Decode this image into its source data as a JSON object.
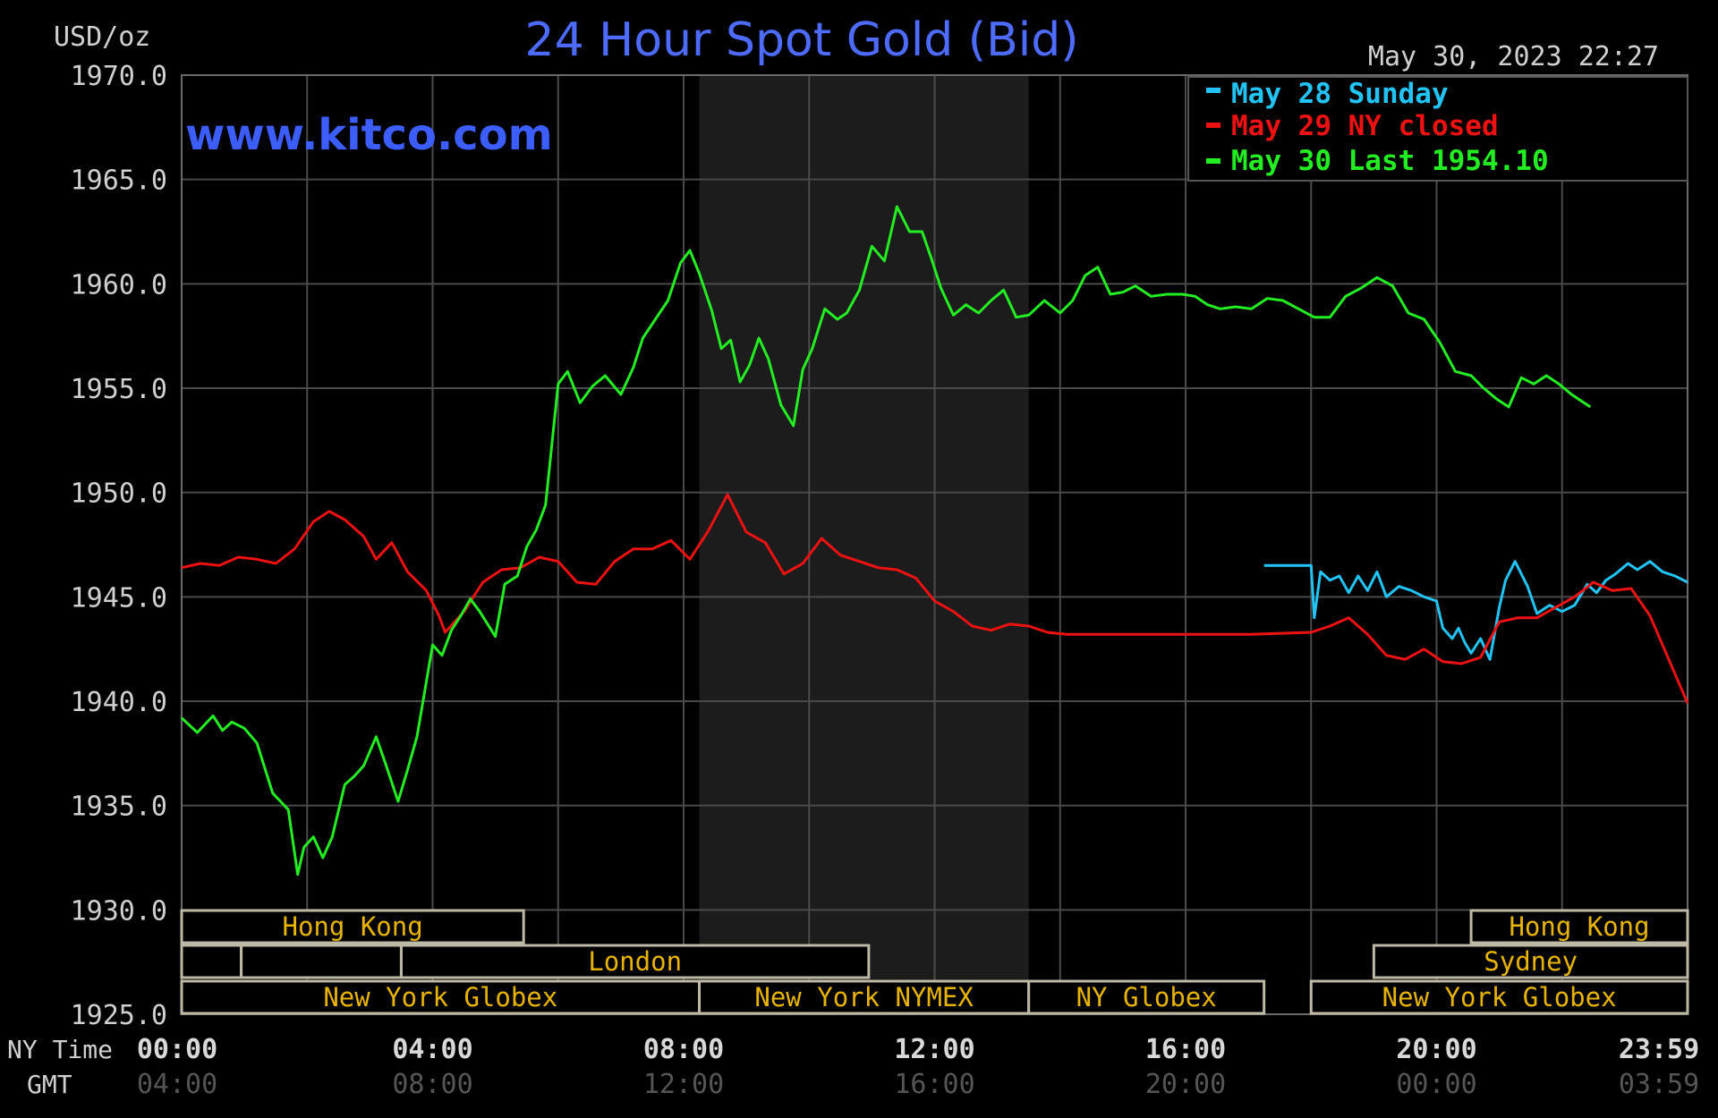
{
  "chart_data": {
    "type": "line",
    "title": "24 Hour Spot Gold (Bid)",
    "ylabel": "USD/oz",
    "timestamp": "May 30, 2023 22:27",
    "watermark": "www.kitco.com",
    "ylim": [
      1925,
      1970
    ],
    "y_ticks": [
      "1970.0",
      "1965.0",
      "1960.0",
      "1955.0",
      "1950.0",
      "1945.0",
      "1940.0",
      "1935.0",
      "1930.0",
      "1925.0"
    ],
    "x_axis": {
      "row_labels": [
        "NY Time",
        "GMT"
      ],
      "ny_ticks": [
        "00:00",
        "04:00",
        "08:00",
        "12:00",
        "16:00",
        "20:00",
        "23:59"
      ],
      "gmt_ticks": [
        "04:00",
        "08:00",
        "12:00",
        "16:00",
        "20:00",
        "00:00",
        "03:59"
      ]
    },
    "grid": true,
    "legend_position": "top-right",
    "legend": [
      {
        "label": "May 28 Sunday",
        "color": "#22c4f5"
      },
      {
        "label": "May 29 NY closed",
        "color": "#ee1111"
      },
      {
        "label": "May 30 Last 1954.10",
        "color": "#22ee22"
      }
    ],
    "sessions": {
      "row1": [
        {
          "label": "Hong Kong",
          "start": 0.0,
          "end": 5.45
        },
        {
          "label": "Hong Kong",
          "start": 20.55,
          "end": 24.0
        }
      ],
      "row2": [
        {
          "label": "",
          "start": 0.0,
          "end": 0.95
        },
        {
          "label": "",
          "start": 0.95,
          "end": 3.5
        },
        {
          "label": "London",
          "start": 3.5,
          "end": 10.95
        },
        {
          "label": "Sydney",
          "start": 19.0,
          "end": 24.0
        }
      ],
      "row3": [
        {
          "label": "New York Globex",
          "start": 0.0,
          "end": 8.25
        },
        {
          "label": "New York NYMEX",
          "start": 8.25,
          "end": 13.5
        },
        {
          "label": "NY Globex",
          "start": 13.5,
          "end": 17.25
        },
        {
          "label": "New York Globex",
          "start": 18.0,
          "end": 24.0
        }
      ]
    },
    "shaded_session": {
      "start": 8.25,
      "end": 13.5
    },
    "series": [
      {
        "name": "May 28 Sunday",
        "color": "#22c4f5",
        "x": [
          17.25,
          17.7,
          17.95,
          18.0,
          18.05,
          18.15,
          18.3,
          18.45,
          18.6,
          18.75,
          18.9,
          19.05,
          19.2,
          19.4,
          19.6,
          19.8,
          20.0,
          20.1,
          20.25,
          20.35,
          20.45,
          20.55,
          20.7,
          20.85,
          21.0,
          21.1,
          21.25,
          21.45,
          21.6,
          21.8,
          22.0,
          22.2,
          22.4,
          22.55,
          22.7,
          22.85,
          23.05,
          23.2,
          23.4,
          23.6,
          23.8,
          24.0
        ],
        "y": [
          1946.5,
          1946.5,
          1946.5,
          1946.5,
          1944.0,
          1946.2,
          1945.8,
          1946.0,
          1945.2,
          1946.0,
          1945.3,
          1946.2,
          1945.0,
          1945.5,
          1945.3,
          1945.0,
          1944.8,
          1943.5,
          1943.0,
          1943.5,
          1942.8,
          1942.3,
          1943.0,
          1942.0,
          1944.5,
          1945.8,
          1946.7,
          1945.5,
          1944.2,
          1944.6,
          1944.3,
          1944.6,
          1945.6,
          1945.2,
          1945.8,
          1946.1,
          1946.6,
          1946.3,
          1946.7,
          1946.2,
          1946.0,
          1945.7
        ]
      },
      {
        "name": "May 29 NY closed",
        "color": "#ee1111",
        "x": [
          0.0,
          0.3,
          0.6,
          0.9,
          1.2,
          1.5,
          1.8,
          2.1,
          2.35,
          2.6,
          2.9,
          3.1,
          3.35,
          3.6,
          3.9,
          4.1,
          4.2,
          4.5,
          4.8,
          5.1,
          5.4,
          5.7,
          6.0,
          6.3,
          6.6,
          6.9,
          7.2,
          7.5,
          7.8,
          8.1,
          8.4,
          8.7,
          9.0,
          9.3,
          9.6,
          9.9,
          10.2,
          10.5,
          10.8,
          11.1,
          11.4,
          11.7,
          12.0,
          12.3,
          12.6,
          12.9,
          13.2,
          13.5,
          13.8,
          14.1,
          14.4,
          14.7,
          15.0,
          16.0,
          17.0,
          18.0,
          18.3,
          18.6,
          18.9,
          19.2,
          19.5,
          19.8,
          20.1,
          20.4,
          20.7,
          21.0,
          21.3,
          21.6,
          21.9,
          22.2,
          22.5,
          22.8,
          23.1,
          23.4,
          23.7,
          24.0
        ],
        "y": [
          1946.4,
          1946.6,
          1946.5,
          1946.9,
          1946.8,
          1946.6,
          1947.3,
          1948.6,
          1949.1,
          1948.7,
          1947.9,
          1946.8,
          1947.6,
          1946.2,
          1945.3,
          1944.1,
          1943.3,
          1944.3,
          1945.7,
          1946.3,
          1946.4,
          1946.9,
          1946.7,
          1945.7,
          1945.6,
          1946.7,
          1947.3,
          1947.3,
          1947.7,
          1946.8,
          1948.2,
          1949.9,
          1948.1,
          1947.6,
          1946.1,
          1946.6,
          1947.8,
          1947.0,
          1946.7,
          1946.4,
          1946.3,
          1945.9,
          1944.8,
          1944.3,
          1943.6,
          1943.4,
          1943.7,
          1943.6,
          1943.3,
          1943.2,
          1943.2,
          1943.2,
          1943.2,
          1943.2,
          1943.2,
          1943.3,
          1943.6,
          1944.0,
          1943.2,
          1942.2,
          1942.0,
          1942.5,
          1941.9,
          1941.8,
          1942.1,
          1943.8,
          1944.0,
          1944.0,
          1944.5,
          1945.0,
          1945.7,
          1945.3,
          1945.4,
          1944.1,
          1942.0,
          1939.9
        ]
      },
      {
        "name": "May 30 Last 1954.10",
        "color": "#22ee22",
        "x": [
          0.0,
          0.25,
          0.5,
          0.65,
          0.8,
          1.0,
          1.2,
          1.45,
          1.7,
          1.85,
          1.95,
          2.1,
          2.25,
          2.4,
          2.6,
          2.75,
          2.9,
          3.1,
          3.25,
          3.45,
          3.6,
          3.75,
          4.0,
          4.15,
          4.3,
          4.45,
          4.6,
          4.75,
          5.0,
          5.15,
          5.35,
          5.5,
          5.65,
          5.8,
          6.0,
          6.15,
          6.35,
          6.55,
          6.75,
          7.0,
          7.2,
          7.35,
          7.55,
          7.75,
          7.95,
          8.1,
          8.25,
          8.45,
          8.6,
          8.75,
          8.9,
          9.05,
          9.2,
          9.35,
          9.55,
          9.75,
          9.9,
          10.05,
          10.25,
          10.45,
          10.6,
          10.8,
          11.0,
          11.2,
          11.4,
          11.6,
          11.8,
          11.95,
          12.1,
          12.3,
          12.5,
          12.7,
          12.9,
          13.1,
          13.3,
          13.5,
          13.75,
          14.0,
          14.2,
          14.4,
          14.6,
          14.8,
          15.0,
          15.2,
          15.45,
          15.7,
          15.95,
          16.15,
          16.35,
          16.55,
          16.8,
          17.05,
          17.3,
          17.55,
          17.8,
          18.05,
          18.3,
          18.55,
          18.8,
          19.05,
          19.3,
          19.55,
          19.8,
          20.05,
          20.3,
          20.55,
          20.75,
          20.95,
          21.15,
          21.35,
          21.55,
          21.75,
          21.95,
          22.15,
          22.45
        ],
        "y": [
          1939.2,
          1938.5,
          1939.3,
          1938.6,
          1939.0,
          1938.7,
          1938.0,
          1935.6,
          1934.8,
          1931.7,
          1933.0,
          1933.5,
          1932.5,
          1933.5,
          1936.0,
          1936.4,
          1936.9,
          1938.3,
          1937.0,
          1935.2,
          1936.7,
          1938.3,
          1942.7,
          1942.2,
          1943.4,
          1944.1,
          1944.9,
          1944.3,
          1943.1,
          1945.6,
          1946.0,
          1947.4,
          1948.2,
          1949.4,
          1955.2,
          1955.8,
          1954.3,
          1955.1,
          1955.6,
          1954.7,
          1956.0,
          1957.4,
          1958.3,
          1959.2,
          1961.0,
          1961.6,
          1960.5,
          1958.7,
          1956.9,
          1957.3,
          1955.3,
          1956.1,
          1957.4,
          1956.4,
          1954.2,
          1953.2,
          1955.9,
          1956.9,
          1958.8,
          1958.3,
          1958.6,
          1959.7,
          1961.8,
          1961.1,
          1963.7,
          1962.5,
          1962.5,
          1961.2,
          1959.8,
          1958.5,
          1959.0,
          1958.6,
          1959.2,
          1959.7,
          1958.4,
          1958.5,
          1959.2,
          1958.6,
          1959.2,
          1960.4,
          1960.8,
          1959.5,
          1959.6,
          1959.9,
          1959.4,
          1959.5,
          1959.5,
          1959.4,
          1959.0,
          1958.8,
          1958.9,
          1958.8,
          1959.3,
          1959.2,
          1958.8,
          1958.4,
          1958.4,
          1959.4,
          1959.8,
          1960.3,
          1959.9,
          1958.6,
          1958.3,
          1957.2,
          1955.8,
          1955.6,
          1955.0,
          1954.5,
          1954.1,
          1955.5,
          1955.2,
          1955.6,
          1955.2,
          1954.7,
          1954.1
        ]
      }
    ]
  }
}
